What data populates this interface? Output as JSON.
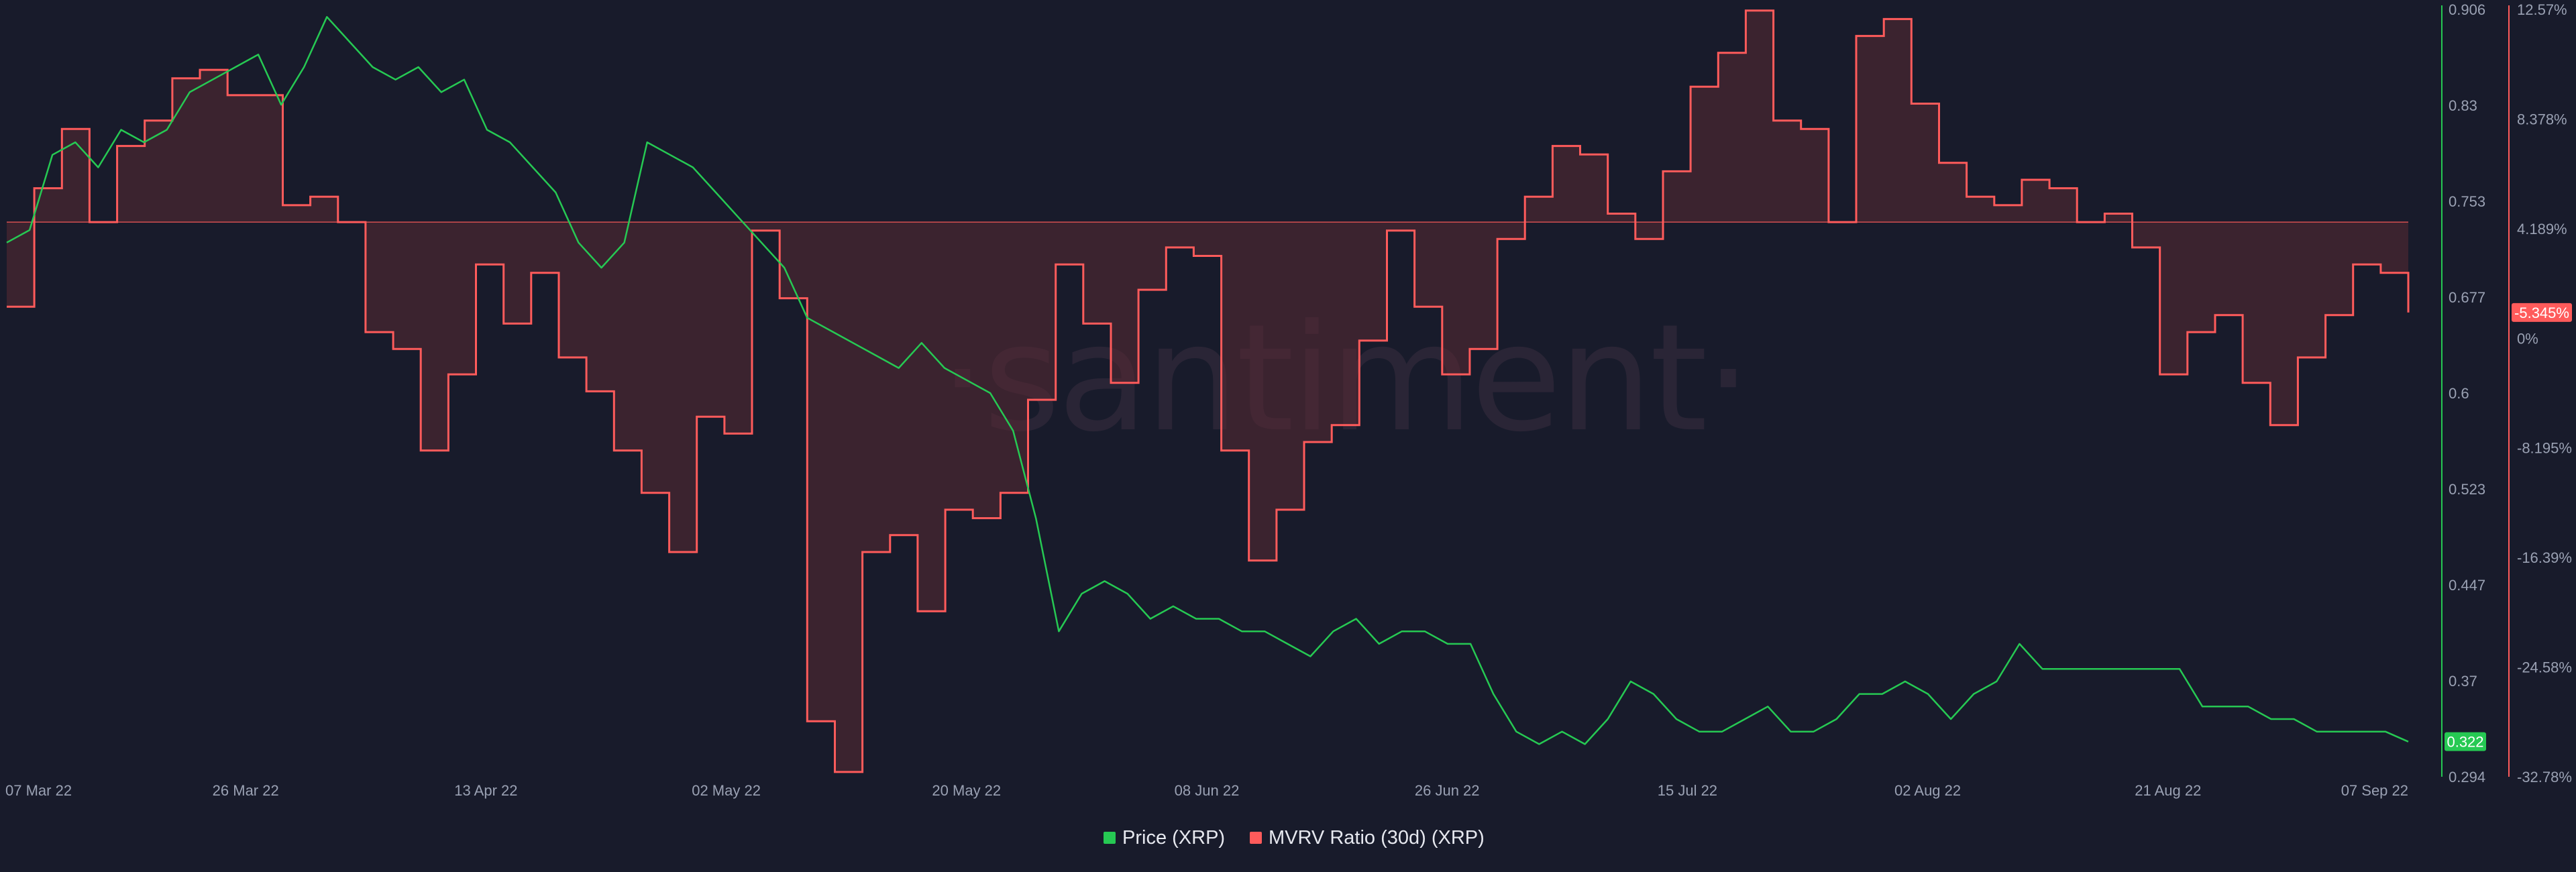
{
  "watermark": "·santiment·",
  "legend": [
    {
      "label": "Price (XRP)",
      "color": "#26c953"
    },
    {
      "label": "MVRV Ratio (30d) (XRP)",
      "color": "#ff5b5b"
    }
  ],
  "chart_data": {
    "type": "line",
    "x_tick_labels": [
      "07 Mar 22",
      "26 Mar 22",
      "13 Apr 22",
      "02 May 22",
      "20 May 22",
      "08 Jun 22",
      "26 Jun 22",
      "15 Jul 22",
      "02 Aug 22",
      "21 Aug 22",
      "07 Sep 22"
    ],
    "grid": false,
    "legend_position": "bottom-center",
    "series": [
      {
        "name": "Price (XRP)",
        "axis": "left",
        "color": "#26c953",
        "ylim": [
          0.294,
          0.906
        ],
        "ticks": [
          "0.906",
          "0.83",
          "0.753",
          "0.677",
          "0.6",
          "0.523",
          "0.447",
          "0.37",
          "0.294"
        ],
        "current_label": "0.322",
        "values": [
          0.72,
          0.73,
          0.79,
          0.8,
          0.78,
          0.81,
          0.8,
          0.81,
          0.84,
          0.85,
          0.86,
          0.87,
          0.83,
          0.86,
          0.9,
          0.88,
          0.86,
          0.85,
          0.86,
          0.84,
          0.85,
          0.81,
          0.8,
          0.78,
          0.76,
          0.72,
          0.7,
          0.72,
          0.8,
          0.79,
          0.78,
          0.76,
          0.74,
          0.72,
          0.7,
          0.66,
          0.65,
          0.64,
          0.63,
          0.62,
          0.64,
          0.62,
          0.61,
          0.6,
          0.57,
          0.5,
          0.41,
          0.44,
          0.45,
          0.44,
          0.42,
          0.43,
          0.42,
          0.42,
          0.41,
          0.41,
          0.4,
          0.39,
          0.41,
          0.42,
          0.4,
          0.41,
          0.41,
          0.4,
          0.4,
          0.36,
          0.33,
          0.32,
          0.33,
          0.32,
          0.34,
          0.37,
          0.36,
          0.34,
          0.33,
          0.33,
          0.34,
          0.35,
          0.33,
          0.33,
          0.34,
          0.36,
          0.36,
          0.37,
          0.36,
          0.34,
          0.36,
          0.37,
          0.4,
          0.38,
          0.38,
          0.38,
          0.38,
          0.38,
          0.38,
          0.38,
          0.35,
          0.35,
          0.35,
          0.34,
          0.34,
          0.33,
          0.33,
          0.33,
          0.33,
          0.322
        ]
      },
      {
        "name": "MVRV Ratio (30d) (XRP)",
        "axis": "right",
        "color": "#ff5b5b",
        "unit": "%",
        "ylim": [
          -32.78,
          12.57
        ],
        "ticks": [
          "12.57%",
          "8.378%",
          "4.189%",
          "0%",
          "-8.195%",
          "-16.39%",
          "-24.58%",
          "-32.78%"
        ],
        "current_label": "-5.345%",
        "values": [
          -5.0,
          2.0,
          5.5,
          0.0,
          4.5,
          6.0,
          8.5,
          9.0,
          7.5,
          7.5,
          1.0,
          1.5,
          0.0,
          -6.5,
          -7.5,
          -13.5,
          -9.0,
          -2.5,
          -6.0,
          -3.0,
          -8.0,
          -10.0,
          -13.5,
          -16.0,
          -19.5,
          -11.5,
          -12.5,
          -0.5,
          -4.5,
          -29.5,
          -32.5,
          -19.5,
          -18.5,
          -23.0,
          -17.0,
          -17.5,
          -16.0,
          -10.5,
          -2.5,
          -6.0,
          -9.5,
          -4.0,
          -1.5,
          -2.0,
          -13.5,
          -20.0,
          -17.0,
          -13.0,
          -12.0,
          -7.0,
          -0.5,
          -5.0,
          -9.0,
          -7.5,
          -1.0,
          1.5,
          4.5,
          4.0,
          0.5,
          -1.0,
          3.0,
          8.0,
          10.0,
          12.5,
          6.0,
          5.5,
          0.0,
          11.0,
          12.0,
          7.0,
          3.5,
          1.5,
          1.0,
          2.5,
          2.0,
          0.0,
          0.5,
          -1.5,
          -9.0,
          -6.5,
          -5.5,
          -9.5,
          -12.0,
          -8.0,
          -5.5,
          -2.5,
          -3.0,
          -5.345
        ]
      }
    ]
  }
}
